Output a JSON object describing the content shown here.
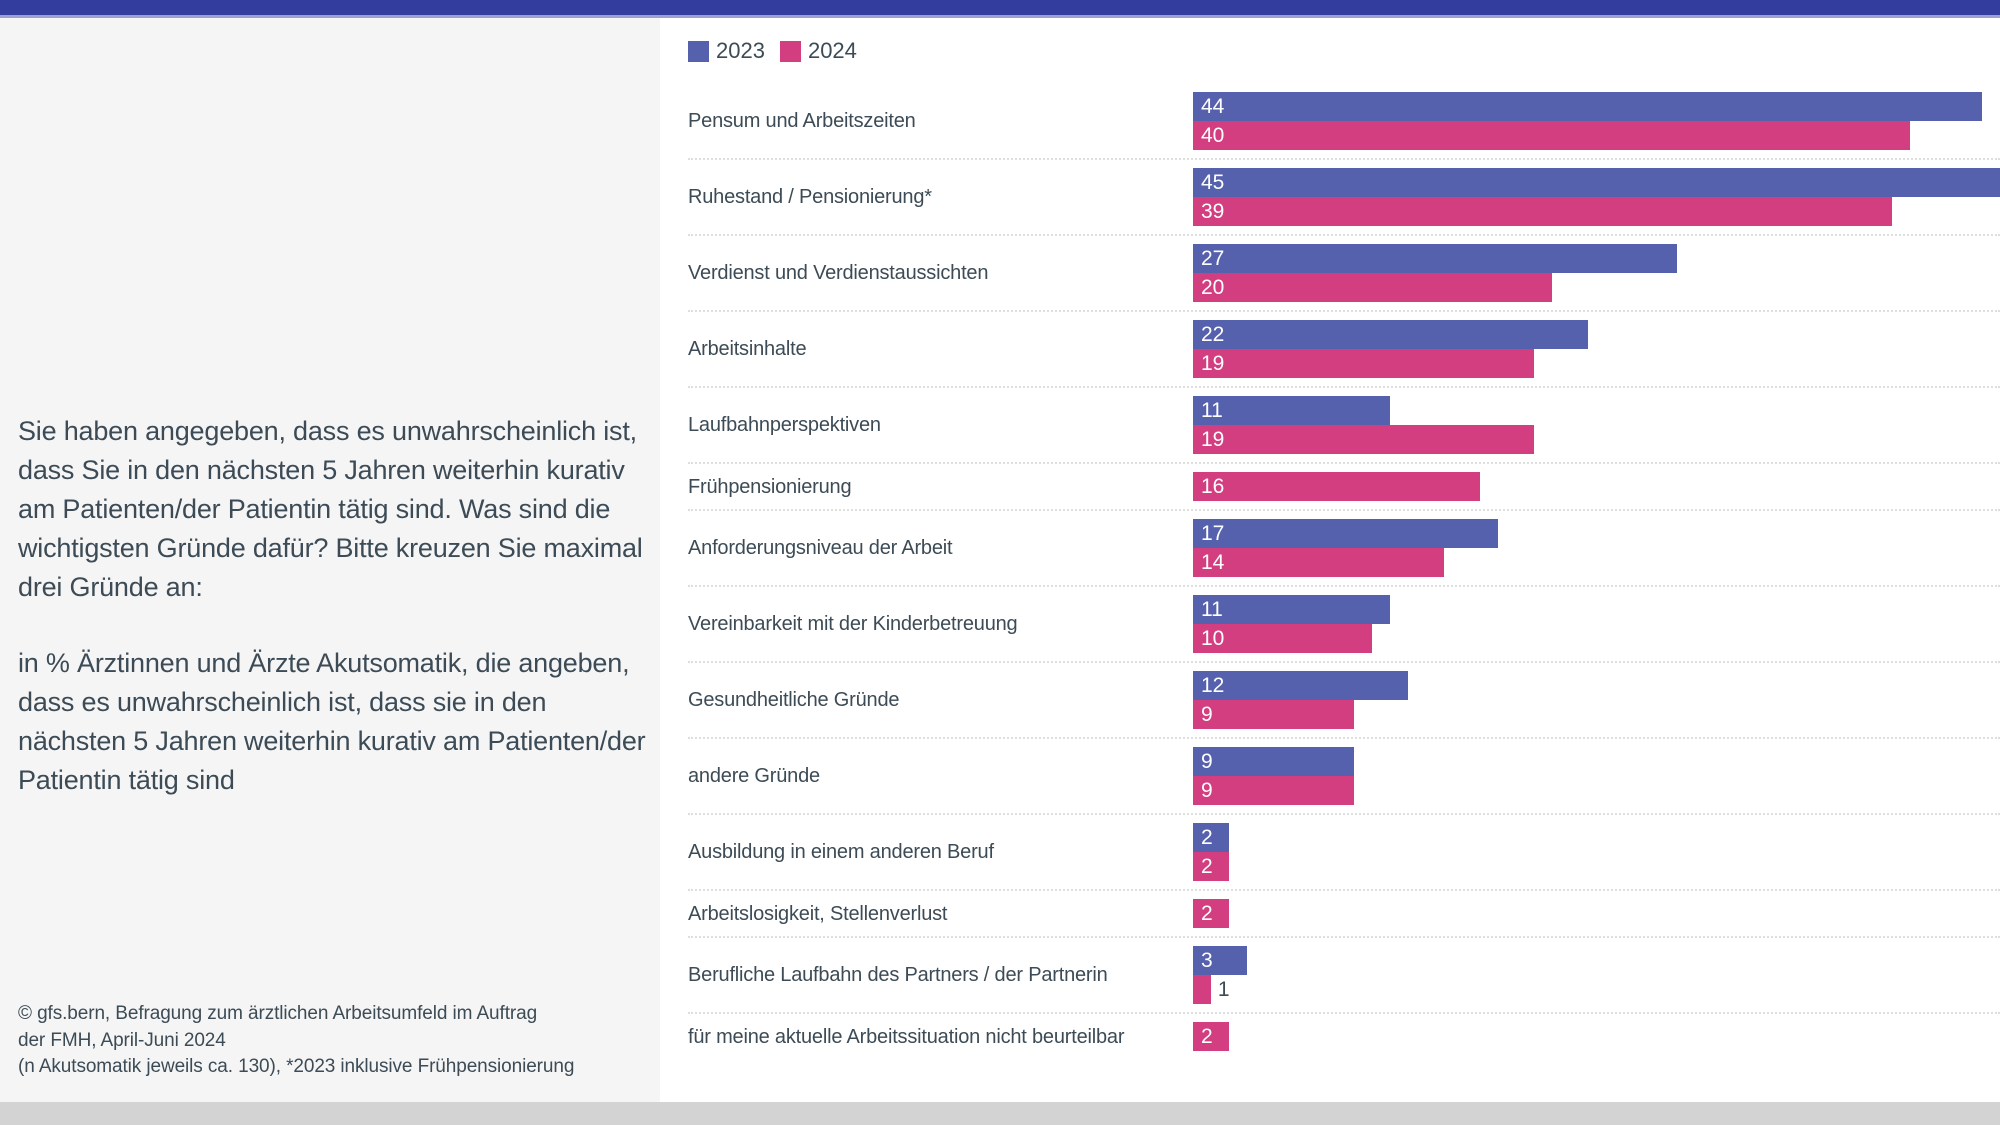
{
  "colors": {
    "topbar": "#333D9D",
    "topbar_underline": "#9AA0CF",
    "left_panel_bg": "#F5F5F6",
    "bottombar": "#D3D3D3",
    "text": "#3C4B55",
    "series_2023": "#5561AC",
    "series_2024": "#D23E80",
    "row_separator": "#DEDEDE"
  },
  "left_panel": {
    "question": "Sie haben angegeben, dass es unwahrscheinlich ist, dass Sie in den nächsten 5 Jahren weiterhin kurativ am Patienten/der Patientin tätig sind. Was sind die wichtigsten Gründe dafür? Bitte kreuzen Sie maximal drei Gründe an:",
    "subtitle": "in % Ärztinnen und Ärzte Akutsomatik, die angeben, dass es unwahrscheinlich ist, dass sie in den nächsten 5 Jahren weiterhin kurativ am Patienten/der Patientin tätig sind",
    "source_lines": [
      "© gfs.bern, Befragung zum ärztlichen Arbeitsumfeld im Auftrag",
      "der FMH, April-Juni 2024",
      "(n Akutsomatik jeweils ca. 130), *2023 inklusive Frühpensionierung"
    ]
  },
  "chart_data": {
    "type": "bar",
    "orientation": "horizontal",
    "value_unit": "%",
    "xlim": [
      0,
      45
    ],
    "legend_position": "top-left",
    "grid": false,
    "row_separators": "dotted",
    "categories": [
      "Pensum und Arbeitszeiten",
      "Ruhestand / Pensionierung*",
      "Verdienst und Verdienstaussichten",
      "Arbeitsinhalte",
      "Laufbahnperspektiven",
      "Frühpensionierung",
      "Anforderungsniveau der Arbeit",
      "Vereinbarkeit mit der Kinderbetreuung",
      "Gesundheitliche Gründe",
      "andere Gründe",
      "Ausbildung in einem anderen Beruf",
      "Arbeitslosigkeit, Stellenverlust",
      "Berufliche Laufbahn des Partners / der Partnerin",
      "für meine aktuelle Arbeitssituation nicht beurteilbar"
    ],
    "series": [
      {
        "name": "2023",
        "color": "#5561AC",
        "values": [
          44,
          45,
          27,
          22,
          11,
          null,
          17,
          11,
          12,
          9,
          2,
          null,
          3,
          null
        ]
      },
      {
        "name": "2024",
        "color": "#D23E80",
        "values": [
          40,
          39,
          20,
          19,
          19,
          16,
          14,
          10,
          9,
          9,
          2,
          2,
          1,
          2
        ]
      }
    ]
  }
}
